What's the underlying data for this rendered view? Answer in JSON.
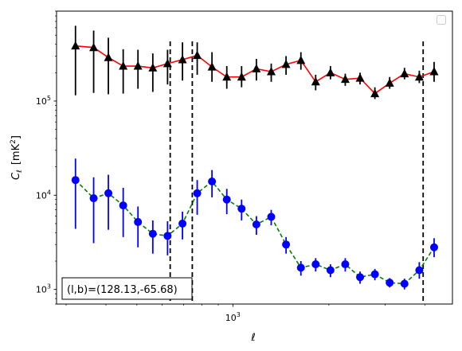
{
  "chart_data": {
    "type": "scatter",
    "title": "",
    "xlabel": "ℓ",
    "ylabel_main": "C",
    "ylabel_sub": "ℓ",
    "ylabel_unit_prefix": "[mK",
    "ylabel_unit_sup": "2",
    "ylabel_unit_suffix": "]",
    "xscale": "log",
    "yscale": "log",
    "xlim": [
      280,
      4880
    ],
    "ylim": [
      700,
      900000
    ],
    "x_ticks": [
      {
        "value": 1000,
        "base": "10",
        "exp": "3"
      }
    ],
    "y_ticks": [
      {
        "value": 1000,
        "base": "10",
        "exp": "3"
      },
      {
        "value": 10000,
        "base": "10",
        "exp": "4"
      },
      {
        "value": 100000,
        "base": "10",
        "exp": "5"
      }
    ],
    "vlines": [
      636,
      746,
      3950
    ],
    "legend": {
      "placement": "top-right",
      "entries": []
    },
    "annotation": "(l,b)=(128.13,-65.68)",
    "series": [
      {
        "color": "#000000",
        "line_color": "#ff0000",
        "marker": "triangle",
        "line_style": "solid",
        "points": [
          {
            "x": 321,
            "y": 385000,
            "lo": 115000,
            "hi": 630000
          },
          {
            "x": 366,
            "y": 370000,
            "lo": 122000,
            "hi": 560000
          },
          {
            "x": 407,
            "y": 290000,
            "lo": 118000,
            "hi": 470000
          },
          {
            "x": 453,
            "y": 235000,
            "lo": 120000,
            "hi": 355000
          },
          {
            "x": 504,
            "y": 235000,
            "lo": 135000,
            "hi": 350000
          },
          {
            "x": 561,
            "y": 225000,
            "lo": 125000,
            "hi": 320000
          },
          {
            "x": 624,
            "y": 250000,
            "lo": 150000,
            "hi": 350000
          },
          {
            "x": 695,
            "y": 275000,
            "lo": 165000,
            "hi": 420000
          },
          {
            "x": 773,
            "y": 305000,
            "lo": 190000,
            "hi": 420000
          },
          {
            "x": 860,
            "y": 230000,
            "lo": 160000,
            "hi": 330000
          },
          {
            "x": 957,
            "y": 180000,
            "lo": 135000,
            "hi": 235000
          },
          {
            "x": 1065,
            "y": 180000,
            "lo": 140000,
            "hi": 235000
          },
          {
            "x": 1185,
            "y": 220000,
            "lo": 165000,
            "hi": 280000
          },
          {
            "x": 1319,
            "y": 205000,
            "lo": 160000,
            "hi": 250000
          },
          {
            "x": 1468,
            "y": 245000,
            "lo": 190000,
            "hi": 300000
          },
          {
            "x": 1634,
            "y": 270000,
            "lo": 215000,
            "hi": 330000
          },
          {
            "x": 1818,
            "y": 160000,
            "lo": 130000,
            "hi": 190000
          },
          {
            "x": 2023,
            "y": 200000,
            "lo": 170000,
            "hi": 235000
          },
          {
            "x": 2251,
            "y": 170000,
            "lo": 145000,
            "hi": 195000
          },
          {
            "x": 2505,
            "y": 175000,
            "lo": 150000,
            "hi": 200000
          },
          {
            "x": 2788,
            "y": 120000,
            "lo": 105000,
            "hi": 140000
          },
          {
            "x": 3102,
            "y": 155000,
            "lo": 135000,
            "hi": 180000
          },
          {
            "x": 3452,
            "y": 195000,
            "lo": 170000,
            "hi": 225000
          },
          {
            "x": 3842,
            "y": 180000,
            "lo": 155000,
            "hi": 210000
          },
          {
            "x": 4275,
            "y": 205000,
            "lo": 160000,
            "hi": 260000
          }
        ]
      },
      {
        "color": "#0000ff",
        "line_color": "#008000",
        "marker": "circle",
        "line_style": "dashed",
        "points": [
          {
            "x": 321,
            "y": 14500,
            "lo": 4400,
            "hi": 24500
          },
          {
            "x": 366,
            "y": 9300,
            "lo": 3100,
            "hi": 15500
          },
          {
            "x": 407,
            "y": 10500,
            "lo": 4300,
            "hi": 16500
          },
          {
            "x": 453,
            "y": 7800,
            "lo": 3600,
            "hi": 12000
          },
          {
            "x": 504,
            "y": 5200,
            "lo": 2800,
            "hi": 7600
          },
          {
            "x": 561,
            "y": 3900,
            "lo": 2400,
            "hi": 5400
          },
          {
            "x": 624,
            "y": 3700,
            "lo": 2300,
            "hi": 5300
          },
          {
            "x": 695,
            "y": 5000,
            "lo": 3400,
            "hi": 6700
          },
          {
            "x": 773,
            "y": 10500,
            "lo": 6200,
            "hi": 14500
          },
          {
            "x": 860,
            "y": 14000,
            "lo": 9500,
            "hi": 18500
          },
          {
            "x": 957,
            "y": 9000,
            "lo": 6300,
            "hi": 11700
          },
          {
            "x": 1065,
            "y": 7200,
            "lo": 5400,
            "hi": 9000
          },
          {
            "x": 1185,
            "y": 4900,
            "lo": 3800,
            "hi": 6000
          },
          {
            "x": 1319,
            "y": 5900,
            "lo": 4800,
            "hi": 7000
          },
          {
            "x": 1468,
            "y": 3000,
            "lo": 2400,
            "hi": 3600
          },
          {
            "x": 1634,
            "y": 1700,
            "lo": 1400,
            "hi": 2000
          },
          {
            "x": 1818,
            "y": 1850,
            "lo": 1550,
            "hi": 2150
          },
          {
            "x": 2023,
            "y": 1600,
            "lo": 1350,
            "hi": 1850
          },
          {
            "x": 2251,
            "y": 1850,
            "lo": 1550,
            "hi": 2150
          },
          {
            "x": 2505,
            "y": 1350,
            "lo": 1150,
            "hi": 1550
          },
          {
            "x": 2788,
            "y": 1450,
            "lo": 1250,
            "hi": 1650
          },
          {
            "x": 3102,
            "y": 1180,
            "lo": 1050,
            "hi": 1320
          },
          {
            "x": 3452,
            "y": 1150,
            "lo": 1000,
            "hi": 1300
          },
          {
            "x": 3842,
            "y": 1600,
            "lo": 1300,
            "hi": 1950
          },
          {
            "x": 4275,
            "y": 2800,
            "lo": 2200,
            "hi": 3500
          }
        ]
      }
    ]
  }
}
